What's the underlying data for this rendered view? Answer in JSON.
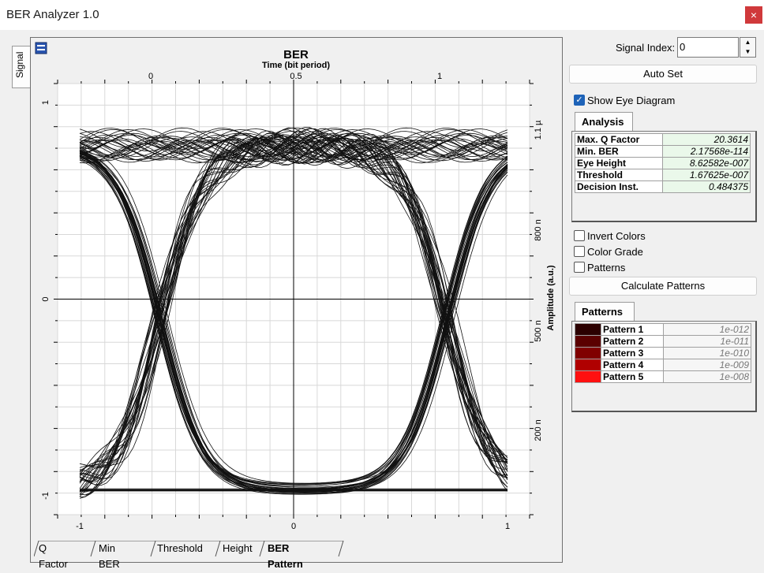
{
  "window": {
    "title": "BER Analyzer 1.0",
    "close_glyph": "×"
  },
  "side_tab": {
    "label": "Signal"
  },
  "chart_data": {
    "type": "line",
    "title": "BER",
    "top_axis_label": "Time (bit period)",
    "top_ticks": [
      "0",
      "0.5",
      "1"
    ],
    "right_axis_label": "Amplitude (a.u.)",
    "right_ticks": [
      "1.1 µ",
      "800 n",
      "500 n",
      "200 n"
    ],
    "left_ticks": [
      "1",
      "0",
      "-1"
    ],
    "bottom_ticks": [
      "-1",
      "0",
      "1"
    ],
    "xlim": [
      -1,
      1
    ],
    "ylim": [
      -1,
      1
    ],
    "grid": true
  },
  "bottom_tabs": [
    "Q Factor",
    "Min BER",
    "Threshold",
    "Height",
    "BER Pattern"
  ],
  "active_bottom_tab": "BER Pattern",
  "controls": {
    "signal_index_label": "Signal Index:",
    "signal_index_value": "0",
    "auto_set_label": "Auto Set",
    "show_eye_label": "Show Eye Diagram",
    "show_eye_checked": true,
    "analysis_tab": "Analysis",
    "analysis_rows": [
      {
        "key": "Max. Q Factor",
        "value": "20.3614"
      },
      {
        "key": "Min. BER",
        "value": "2.17568e-114"
      },
      {
        "key": "Eye Height",
        "value": "8.62582e-007"
      },
      {
        "key": "Threshold",
        "value": "1.67625e-007"
      },
      {
        "key": "Decision Inst.",
        "value": "0.484375"
      }
    ],
    "invert_colors_label": "Invert Colors",
    "color_grade_label": "Color Grade",
    "patterns_label": "Patterns",
    "calculate_patterns_label": "Calculate Patterns",
    "patterns_tab": "Patterns",
    "pattern_rows": [
      {
        "name": "Pattern 1",
        "value": "1e-012",
        "color": "#2b0000"
      },
      {
        "name": "Pattern 2",
        "value": "1e-011",
        "color": "#5a0000"
      },
      {
        "name": "Pattern 3",
        "value": "1e-010",
        "color": "#800000"
      },
      {
        "name": "Pattern 4",
        "value": "1e-009",
        "color": "#b00000"
      },
      {
        "name": "Pattern 5",
        "value": "1e-008",
        "color": "#ff1010"
      }
    ]
  }
}
